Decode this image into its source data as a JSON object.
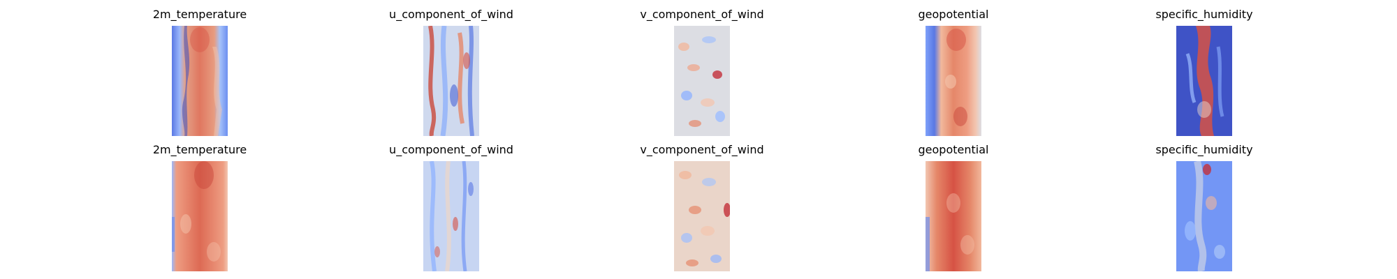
{
  "colormap": {
    "name": "coolwarm",
    "cold": "#3b4cc0",
    "neutral": "#dddddd",
    "warm": "#b40426"
  },
  "rows": [
    {
      "panels": [
        {
          "title": "2m_temperature",
          "pattern": "warm-band-cold-edges"
        },
        {
          "title": "u_component_of_wind",
          "pattern": "mixed-streaks"
        },
        {
          "title": "v_component_of_wind",
          "pattern": "light-mottled"
        },
        {
          "title": "geopotential",
          "pattern": "warm-band-cold-edges"
        },
        {
          "title": "specific_humidity",
          "pattern": "cold-field-warm-core"
        }
      ]
    },
    {
      "panels": [
        {
          "title": "2m_temperature",
          "pattern": "mostly-warm"
        },
        {
          "title": "u_component_of_wind",
          "pattern": "light-streaks"
        },
        {
          "title": "v_component_of_wind",
          "pattern": "light-mottled-warm"
        },
        {
          "title": "geopotential",
          "pattern": "warm-band-cold-edges"
        },
        {
          "title": "specific_humidity",
          "pattern": "cool-mottled"
        }
      ]
    }
  ]
}
